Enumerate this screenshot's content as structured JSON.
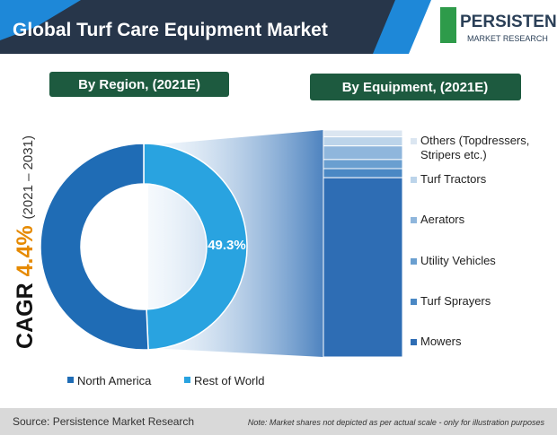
{
  "title": "Global Turf Care Equipment Market",
  "logo": {
    "name": "PERSISTENCE",
    "tagline": "MARKET RESEARCH"
  },
  "chart_data": [
    {
      "type": "donut",
      "subtitle": "By Region, (2021E)",
      "categories": [
        "North America",
        "Rest of World"
      ],
      "values": [
        50.7,
        49.3
      ],
      "value_labels": [
        null,
        "49.3%"
      ],
      "colors": [
        "#1f6cb5",
        "#29a3e0"
      ],
      "annotation": {
        "label": "CAGR",
        "value": "4.4%",
        "period": "(2021 – 2031)"
      }
    },
    {
      "type": "stacked_bar",
      "subtitle": "By Equipment, (2021E)",
      "categories": [
        "Others (Topdressers, Stripers etc.)",
        "Turf Tractors",
        "Aerators",
        "Utility Vehicles",
        "Turf Sprayers",
        "Mowers"
      ],
      "values": [
        3,
        4,
        6,
        4,
        4,
        79
      ],
      "colors": [
        "#dbe6f1",
        "#bcd4ea",
        "#8fb6dc",
        "#6a9fd0",
        "#4a88c4",
        "#2e6db4"
      ]
    }
  ],
  "source": "Source: Persistence Market Research",
  "note": "Note: Market shares not depicted as per actual scale - only for illustration purposes"
}
